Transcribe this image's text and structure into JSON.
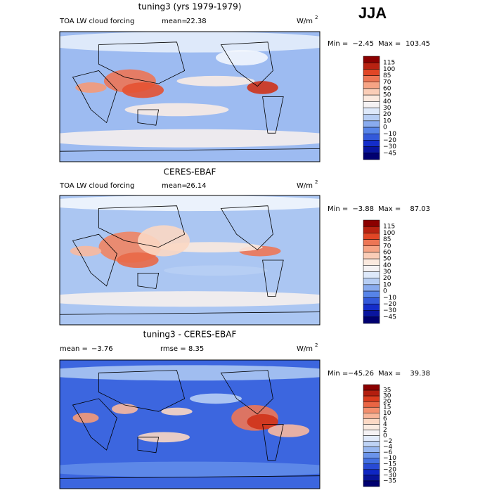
{
  "header": {
    "season": "JJA"
  },
  "panels": [
    {
      "title": "tuning3 (yrs 1979-1979)",
      "field": "TOA LW cloud forcing",
      "stats": [
        {
          "label": "mean=",
          "value": "22.38"
        }
      ],
      "units": "W/m",
      "units_exp": "2",
      "range": {
        "min_label": "Min =",
        "min": "−2.45",
        "max_label": "Max =",
        "max": "103.45"
      },
      "colorbar": [
        "115",
        "100",
        "85",
        "70",
        "60",
        "50",
        "40",
        "30",
        "20",
        "10",
        "0",
        "−10",
        "−20",
        "−30",
        "−45"
      ]
    },
    {
      "title": "CERES-EBAF",
      "field": "TOA LW cloud forcing",
      "stats": [
        {
          "label": "mean=",
          "value": "26.14"
        }
      ],
      "units": "W/m",
      "units_exp": "2",
      "range": {
        "min_label": "Min =",
        "min": "−3.88",
        "max_label": "Max =",
        "max": "87.03"
      },
      "colorbar": [
        "115",
        "100",
        "85",
        "70",
        "60",
        "50",
        "40",
        "30",
        "20",
        "10",
        "0",
        "−10",
        "−20",
        "−30",
        "−45"
      ]
    },
    {
      "title": "tuning3 - CERES-EBAF",
      "field": null,
      "stats": [
        {
          "label": "mean =",
          "value": "−3.76"
        },
        {
          "label": "rmse =",
          "value": "8.35"
        }
      ],
      "units": "W/m",
      "units_exp": "2",
      "range": {
        "min_label": "Min =",
        "min": "−45.26",
        "max_label": "Max =",
        "max": "39.38"
      },
      "colorbar": [
        "35",
        "30",
        "20",
        "15",
        "10",
        "6",
        "4",
        "2",
        "0",
        "−2",
        "−4",
        "−6",
        "−10",
        "−15",
        "−20",
        "−30",
        "−35"
      ]
    }
  ]
}
